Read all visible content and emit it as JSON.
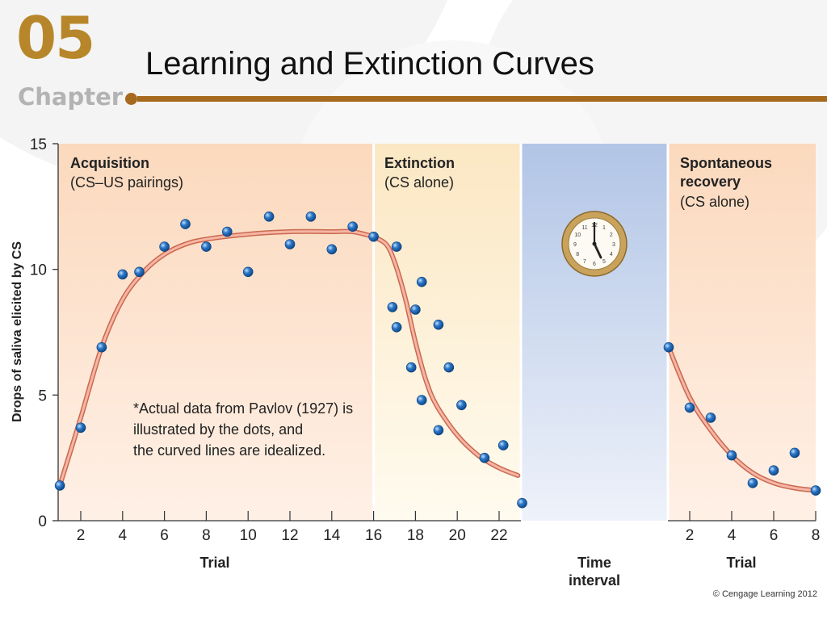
{
  "header": {
    "chapter_number": "05",
    "chapter_word": "Chapter",
    "title": "Learning and Extinction Curves"
  },
  "copyright": "© Cengage Learning 2012",
  "colors": {
    "accent": "#a66a1e",
    "chapter_number": "#b8862a",
    "acquisition_bg": "#fbd9bd",
    "extinction_bg": "#fbe7c3",
    "time_interval_bg": "#b2c5e6",
    "curve": "#e88a7a",
    "dot": "#2e78c8"
  },
  "chart_data": {
    "type": "scatter",
    "ylabel": "Drops of saliva elicited by CS",
    "ylim": [
      0,
      15
    ],
    "yticks": [
      0,
      5,
      10,
      15
    ],
    "panels": [
      {
        "key": "acquisition",
        "label_bold": "Acquisition",
        "label_sub": "(CS–US pairings)"
      },
      {
        "key": "extinction",
        "label_bold": "Extinction",
        "label_sub": "(CS alone)"
      },
      {
        "key": "time",
        "label_bold": "",
        "label_sub": ""
      },
      {
        "key": "recovery",
        "label_bold_lines": [
          "Spontaneous",
          "recovery"
        ],
        "label_sub": "(CS alone)"
      }
    ],
    "xlabels": {
      "trial_left": "Trial",
      "time_lines": [
        "Time",
        "interval"
      ],
      "trial_right": "Trial"
    },
    "x_ticks_main": [
      2,
      4,
      6,
      8,
      10,
      12,
      14,
      16,
      18,
      20,
      22
    ],
    "x_ticks_recovery": [
      2,
      4,
      6,
      8
    ],
    "note_lines": [
      "*Actual data from Pavlov (1927) is",
      "illustrated by the dots, and",
      "the curved lines are idealized."
    ],
    "clock_icon": "clock-icon",
    "series": [
      {
        "name": "Acquisition",
        "points": [
          [
            1,
            1.4
          ],
          [
            2,
            3.7
          ],
          [
            3,
            6.9
          ],
          [
            4,
            9.8
          ],
          [
            4.8,
            9.9
          ],
          [
            6,
            10.9
          ],
          [
            7,
            11.8
          ],
          [
            8,
            10.9
          ],
          [
            9,
            11.5
          ],
          [
            10,
            9.9
          ],
          [
            11,
            12.1
          ],
          [
            12,
            11.0
          ],
          [
            13,
            12.1
          ],
          [
            14,
            10.8
          ],
          [
            15,
            11.7
          ],
          [
            16,
            11.3
          ]
        ]
      },
      {
        "name": "Extinction",
        "points": [
          [
            16.9,
            8.5
          ],
          [
            17.1,
            7.7
          ],
          [
            17.1,
            10.9
          ],
          [
            17.8,
            6.1
          ],
          [
            18,
            8.4
          ],
          [
            18.3,
            9.5
          ],
          [
            18.3,
            4.8
          ],
          [
            19.1,
            7.8
          ],
          [
            19.1,
            3.6
          ],
          [
            19.6,
            6.1
          ],
          [
            20.2,
            4.6
          ],
          [
            21.3,
            2.5
          ],
          [
            22.2,
            3.0
          ],
          [
            23.1,
            0.7
          ]
        ]
      },
      {
        "name": "Spontaneous recovery",
        "points": [
          [
            1,
            6.9
          ],
          [
            2,
            4.5
          ],
          [
            3,
            4.1
          ],
          [
            4,
            2.6
          ],
          [
            5,
            1.5
          ],
          [
            6,
            2.0
          ],
          [
            7,
            2.7
          ],
          [
            8,
            1.2
          ]
        ]
      }
    ],
    "idealized_curves": [
      {
        "name": "Acquisition curve",
        "points": [
          [
            1,
            1.4
          ],
          [
            2,
            4.1
          ],
          [
            3,
            6.9
          ],
          [
            4,
            8.8
          ],
          [
            5,
            9.9
          ],
          [
            6,
            10.6
          ],
          [
            7,
            11.0
          ],
          [
            8,
            11.2
          ],
          [
            10,
            11.4
          ],
          [
            12,
            11.5
          ],
          [
            14,
            11.5
          ],
          [
            15,
            11.5
          ],
          [
            16,
            11.3
          ]
        ]
      },
      {
        "name": "Extinction curve",
        "points": [
          [
            16,
            11.3
          ],
          [
            16.6,
            11.0
          ],
          [
            17,
            10.3
          ],
          [
            17.5,
            8.9
          ],
          [
            18,
            7.1
          ],
          [
            18.5,
            5.6
          ],
          [
            19,
            4.6
          ],
          [
            20,
            3.4
          ],
          [
            21,
            2.6
          ],
          [
            22,
            2.1
          ],
          [
            22.9,
            1.8
          ]
        ]
      },
      {
        "name": "Recovery curve",
        "points": [
          [
            1,
            6.9
          ],
          [
            2,
            4.9
          ],
          [
            3,
            3.6
          ],
          [
            4,
            2.6
          ],
          [
            5,
            1.9
          ],
          [
            6,
            1.5
          ],
          [
            7,
            1.3
          ],
          [
            8,
            1.2
          ]
        ]
      }
    ]
  }
}
